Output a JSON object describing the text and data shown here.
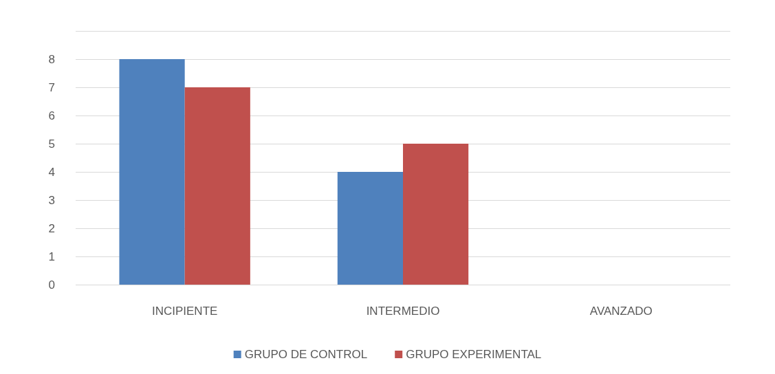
{
  "chart_data": {
    "type": "bar",
    "categories": [
      "INCIPIENTE",
      "INTERMEDIO",
      "AVANZADO"
    ],
    "series": [
      {
        "name": "GRUPO DE CONTROL",
        "color": "#4f81bd",
        "values": [
          8,
          4,
          0
        ]
      },
      {
        "name": "GRUPO EXPERIMENTAL",
        "color": "#c0504d",
        "values": [
          7,
          5,
          0
        ]
      }
    ],
    "ylim": [
      0,
      9
    ],
    "yticks": [
      0,
      1,
      2,
      3,
      4,
      5,
      6,
      7,
      8,
      {
        "value": 9,
        "label": null
      }
    ],
    "grid": true,
    "legend": "bottom"
  }
}
